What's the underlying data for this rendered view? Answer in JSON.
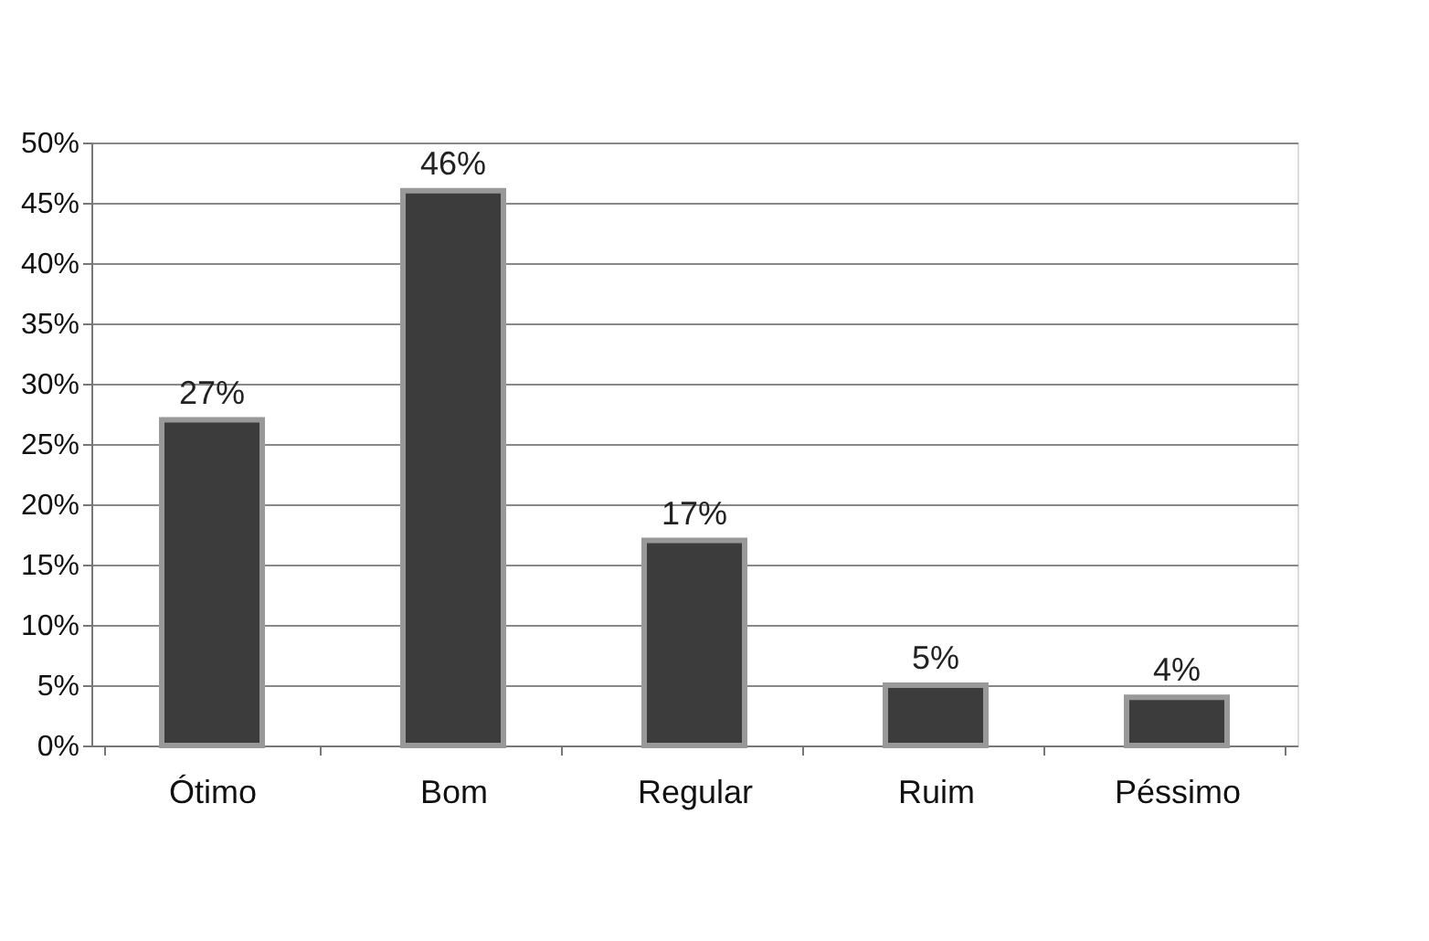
{
  "chart_data": {
    "type": "bar",
    "categories": [
      "Ótimo",
      "Bom",
      "Regular",
      "Ruim",
      "Péssimo"
    ],
    "values": [
      27,
      46,
      17,
      5,
      4
    ],
    "value_labels": [
      "27%",
      "46%",
      "17%",
      "5%",
      "4%"
    ],
    "color": "#3c3c3c",
    "ylim": [
      0,
      50
    ],
    "yticks": [
      {
        "value": 0,
        "label": "0%"
      },
      {
        "value": 5,
        "label": "5%"
      },
      {
        "value": 10,
        "label": "10%"
      },
      {
        "value": 15,
        "label": "15%"
      },
      {
        "value": 20,
        "label": "20%"
      },
      {
        "value": 25,
        "label": "25%"
      },
      {
        "value": 30,
        "label": "30%"
      },
      {
        "value": 35,
        "label": "35%"
      },
      {
        "value": 40,
        "label": "40%"
      },
      {
        "value": 45,
        "label": "45%"
      },
      {
        "value": 50,
        "label": "50%"
      }
    ],
    "grid": "y"
  }
}
